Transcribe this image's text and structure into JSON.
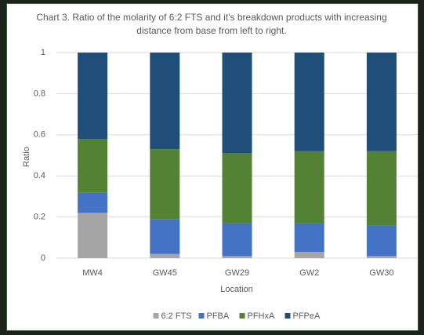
{
  "chart_data": {
    "type": "stacked_bar",
    "title": "Chart 3. Ratio of the molarity of 6:2 FTS and it’s breakdown products with increasing distance from base from left to right.",
    "xlabel": "Location",
    "ylabel": "Ratio",
    "categories": [
      "MW4",
      "GW45",
      "GW29",
      "GW2",
      "GW30"
    ],
    "series": [
      {
        "name": "6:2 FTS",
        "color": "#a5a5a5",
        "values": [
          0.22,
          0.02,
          0.01,
          0.03,
          0.01
        ]
      },
      {
        "name": "PFBA",
        "color": "#4472c4",
        "values": [
          0.1,
          0.17,
          0.16,
          0.14,
          0.15
        ]
      },
      {
        "name": "PFHxA",
        "color": "#548235",
        "values": [
          0.26,
          0.34,
          0.34,
          0.35,
          0.36
        ]
      },
      {
        "name": "PFPeA",
        "color": "#1f4e79",
        "values": [
          0.42,
          0.47,
          0.49,
          0.48,
          0.48
        ]
      }
    ],
    "ylim": [
      0,
      1
    ],
    "yticks": [
      0,
      0.2,
      0.4,
      0.6,
      0.8,
      1
    ],
    "grid": true,
    "legend": "bottom"
  }
}
